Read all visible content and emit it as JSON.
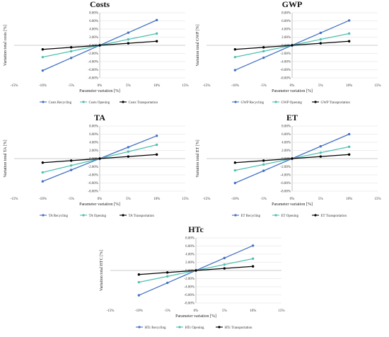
{
  "colors": {
    "recycling": "#4472c4",
    "opening": "#4fc0b0",
    "transportation": "#000000"
  },
  "chart_data": [
    {
      "type": "line",
      "title": "Costs",
      "xlabel": "Parameter variation [%]",
      "ylabel": "Variation total costs [%]",
      "xlim": [
        -15,
        15
      ],
      "ylim": [
        -8,
        8
      ],
      "x_ticks": [
        "-15%",
        "-10%",
        "-5%",
        "0%",
        "5%",
        "10%",
        "15%"
      ],
      "y_ticks": [
        "-8.00%",
        "-6.00%",
        "-4.00%",
        "-2.00%",
        "0.00%",
        "2.00%",
        "4.00%",
        "6.00%",
        "8.00%"
      ],
      "x": [
        -10,
        -5,
        0,
        5,
        10
      ],
      "series": [
        {
          "name": "Costs Recycling",
          "values": [
            -6.2,
            -3.1,
            0,
            3.1,
            6.2
          ]
        },
        {
          "name": "Costs Opening",
          "values": [
            -2.9,
            -1.45,
            0,
            1.45,
            2.9
          ]
        },
        {
          "name": "Costs Transportation",
          "values": [
            -1.0,
            -0.5,
            0,
            0.5,
            1.0
          ]
        }
      ],
      "legend": "bottom"
    },
    {
      "type": "line",
      "title": "GWP",
      "xlabel": "Parameter variation [%]",
      "ylabel": "Variation total GWP [%]",
      "xlim": [
        -15,
        15
      ],
      "ylim": [
        -8,
        8
      ],
      "x_ticks": [
        "-15%",
        "-10%",
        "-5%",
        "0%",
        "5%",
        "10%",
        "15%"
      ],
      "y_ticks": [
        "-8.00%",
        "-6.00%",
        "-4.00%",
        "-2.00%",
        "0.00%",
        "2.00%",
        "4.00%",
        "6.00%",
        "8.00%"
      ],
      "x": [
        -10,
        -5,
        0,
        5,
        10
      ],
      "series": [
        {
          "name": "GWP Recycling",
          "values": [
            -6.1,
            -3.05,
            0,
            3.05,
            6.1
          ]
        },
        {
          "name": "GWP Opening",
          "values": [
            -2.9,
            -1.45,
            0,
            1.45,
            2.9
          ]
        },
        {
          "name": "GWP Transportation",
          "values": [
            -1.0,
            -0.5,
            0,
            0.5,
            1.0
          ]
        }
      ],
      "legend": "bottom"
    },
    {
      "type": "line",
      "title": "TA",
      "xlabel": "Parameter variation [%]",
      "ylabel": "Variation total TA [%]",
      "xlim": [
        -15,
        15
      ],
      "ylim": [
        -8,
        8
      ],
      "x_ticks": [
        "-15%",
        "-10%",
        "-5%",
        "0%",
        "5%",
        "10%",
        "15%"
      ],
      "y_ticks": [
        "-8.00%",
        "-6.00%",
        "-4.00%",
        "-2.00%",
        "0.00%",
        "2.00%",
        "4.00%",
        "6.00%",
        "8.00%"
      ],
      "x": [
        -10,
        -5,
        0,
        5,
        10
      ],
      "series": [
        {
          "name": "TA Recycling",
          "values": [
            -5.6,
            -2.8,
            0,
            2.8,
            5.6
          ]
        },
        {
          "name": "TA Opening",
          "values": [
            -3.4,
            -1.7,
            0,
            1.7,
            3.4
          ]
        },
        {
          "name": "TA Transportation",
          "values": [
            -1.0,
            -0.5,
            0,
            0.5,
            1.0
          ]
        }
      ],
      "legend": "bottom"
    },
    {
      "type": "line",
      "title": "ET",
      "xlabel": "Parameter variation [%]",
      "ylabel": "Variation total ET [%]",
      "xlim": [
        -15,
        15
      ],
      "ylim": [
        -8,
        8
      ],
      "x_ticks": [
        "-15%",
        "-10%",
        "-5%",
        "0%",
        "5%",
        "10%",
        "15%"
      ],
      "y_ticks": [
        "-8.00%",
        "-6.00%",
        "-4.00%",
        "-2.00%",
        "0.00%",
        "2.00%",
        "4.00%",
        "6.00%",
        "8.00%"
      ],
      "x": [
        -10,
        -5,
        0,
        5,
        10
      ],
      "series": [
        {
          "name": "ET Recycling",
          "values": [
            -6.0,
            -3.0,
            0,
            3.0,
            6.0
          ]
        },
        {
          "name": "ET Opening",
          "values": [
            -2.9,
            -1.45,
            0,
            1.45,
            2.9
          ]
        },
        {
          "name": "ET Transportation",
          "values": [
            -1.0,
            -0.5,
            0,
            0.5,
            1.0
          ]
        }
      ],
      "legend": "bottom"
    },
    {
      "type": "line",
      "title": "HTc",
      "xlabel": "Parameter variation [%]",
      "ylabel": "Variation total HTC [%]",
      "xlim": [
        -15,
        15
      ],
      "ylim": [
        -8,
        8
      ],
      "x_ticks": [
        "-15%",
        "-10%",
        "-5%",
        "0%",
        "5%",
        "10%",
        "15%"
      ],
      "y_ticks": [
        "-8.00%",
        "-6.00%",
        "-4.00%",
        "-2.00%",
        "0.00%",
        "2.00%",
        "4.00%",
        "6.00%",
        "8.00%"
      ],
      "x": [
        -10,
        -5,
        0,
        5,
        10
      ],
      "series": [
        {
          "name": "HTc Recycling",
          "values": [
            -6.1,
            -3.05,
            0,
            3.05,
            6.1
          ]
        },
        {
          "name": "HTc Opening",
          "values": [
            -2.9,
            -1.45,
            0,
            1.45,
            2.9
          ]
        },
        {
          "name": "HTc Transportation",
          "values": [
            -1.0,
            -0.5,
            0,
            0.5,
            1.0
          ]
        }
      ],
      "legend": "bottom"
    }
  ]
}
